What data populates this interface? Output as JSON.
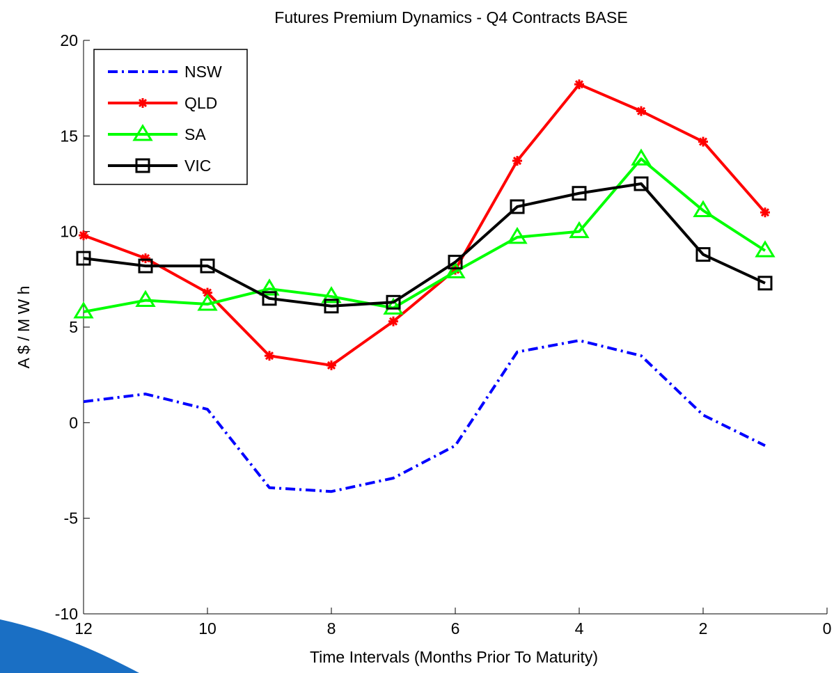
{
  "chart_data": {
    "type": "line",
    "title": "Futures Premium Dynamics - Q4 Contracts BASE",
    "xlabel": "Time Intervals (Months Prior To Maturity)",
    "ylabel": "A $ / M W h",
    "xlim": [
      12,
      0
    ],
    "ylim": [
      -10,
      20
    ],
    "x_ticks": [
      12,
      10,
      8,
      6,
      4,
      2,
      0
    ],
    "y_ticks": [
      -10,
      -5,
      0,
      5,
      10,
      15,
      20
    ],
    "grid": false,
    "legend_position": "top-left",
    "x": [
      12,
      11,
      10,
      9,
      8,
      7,
      6,
      5,
      4,
      3,
      2,
      1
    ],
    "series": [
      {
        "name": "NSW",
        "color": "#0000ff",
        "style": "dash-dot",
        "marker": "none",
        "values": [
          1.1,
          1.5,
          0.7,
          -3.4,
          -3.6,
          -2.9,
          -1.2,
          3.7,
          4.3,
          3.5,
          0.4,
          -1.2
        ]
      },
      {
        "name": "QLD",
        "color": "#ff0000",
        "style": "solid",
        "marker": "star",
        "values": [
          9.8,
          8.6,
          6.8,
          3.5,
          3.0,
          5.3,
          8.0,
          13.7,
          17.7,
          16.3,
          14.7,
          11.0
        ]
      },
      {
        "name": "SA",
        "color": "#00ff00",
        "style": "solid",
        "marker": "triangle",
        "values": [
          5.8,
          6.4,
          6.2,
          7.0,
          6.6,
          6.0,
          7.9,
          9.7,
          10.0,
          13.8,
          11.1,
          9.0
        ]
      },
      {
        "name": "VIC",
        "color": "#000000",
        "style": "solid",
        "marker": "square",
        "values": [
          8.6,
          8.2,
          8.2,
          6.5,
          6.1,
          6.3,
          8.4,
          11.3,
          12.0,
          12.5,
          8.8,
          7.3
        ]
      }
    ]
  }
}
